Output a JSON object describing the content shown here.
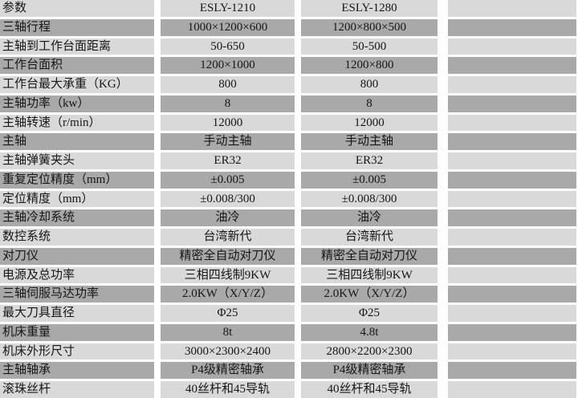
{
  "colors": {
    "row_light": "#d9d9d9",
    "row_dark": "#a9a9a9",
    "gutter": "#ffffff",
    "text": "#161616"
  },
  "table": {
    "header": {
      "param_label": "参数",
      "model_1": "ESLY-1210",
      "model_2": "ESLY-1280"
    },
    "rows": [
      {
        "cells": [
          "参数",
          "ESLY-1210",
          "ESLY-1280",
          ""
        ]
      },
      {
        "cells": [
          "三轴行程",
          "1000×1200×600",
          "1200×800×500",
          ""
        ]
      },
      {
        "cells": [
          "主轴到工作台面距离",
          "50-650",
          "50-500",
          ""
        ]
      },
      {
        "cells": [
          "工作台面积",
          "1200×1000",
          "1200×800",
          ""
        ]
      },
      {
        "cells": [
          "工作台最大承重（KG）",
          "800",
          "800",
          ""
        ]
      },
      {
        "cells": [
          "主轴功率（kw）",
          "8",
          "8",
          ""
        ]
      },
      {
        "cells": [
          "主轴转速（r/min）",
          "12000",
          "12000",
          ""
        ]
      },
      {
        "cells": [
          "主轴",
          "手动主轴",
          "手动主轴",
          ""
        ]
      },
      {
        "cells": [
          "主轴弹簧夹头",
          "ER32",
          "ER32",
          ""
        ]
      },
      {
        "cells": [
          "重复定位精度（mm）",
          "±0.005",
          "±0.005",
          ""
        ]
      },
      {
        "cells": [
          "定位精度（mm）",
          "±0.008/300",
          "±0.008/300",
          ""
        ]
      },
      {
        "cells": [
          "主轴冷却系统",
          "油冷",
          "油冷",
          ""
        ]
      },
      {
        "cells": [
          "数控系统",
          "台湾新代",
          "台湾新代",
          ""
        ]
      },
      {
        "cells": [
          "对刀仪",
          "精密全自动对刀仪",
          "精密全自动对刀仪",
          ""
        ]
      },
      {
        "cells": [
          "电源及总功率",
          "三相四线制9KW",
          "三相四线制9KW",
          ""
        ]
      },
      {
        "cells": [
          "三轴伺服马达功率",
          "2.0KW（X/Y/Z）",
          "2.0KW（X/Y/Z）",
          ""
        ]
      },
      {
        "cells": [
          "最大刀具直径",
          "Φ25",
          "Φ25",
          ""
        ]
      },
      {
        "cells": [
          "机床重量",
          "8t",
          "4.8t",
          ""
        ]
      },
      {
        "cells": [
          "机床外形尺寸",
          "3000×2300×2400",
          "2800×2200×2300",
          ""
        ]
      },
      {
        "cells": [
          "主轴轴承",
          "P4级精密轴承",
          "P4级精密轴承",
          ""
        ]
      },
      {
        "cells": [
          "滚珠丝杆",
          "40丝杆和45导轨",
          "40丝杆和45导轨",
          ""
        ]
      }
    ]
  }
}
